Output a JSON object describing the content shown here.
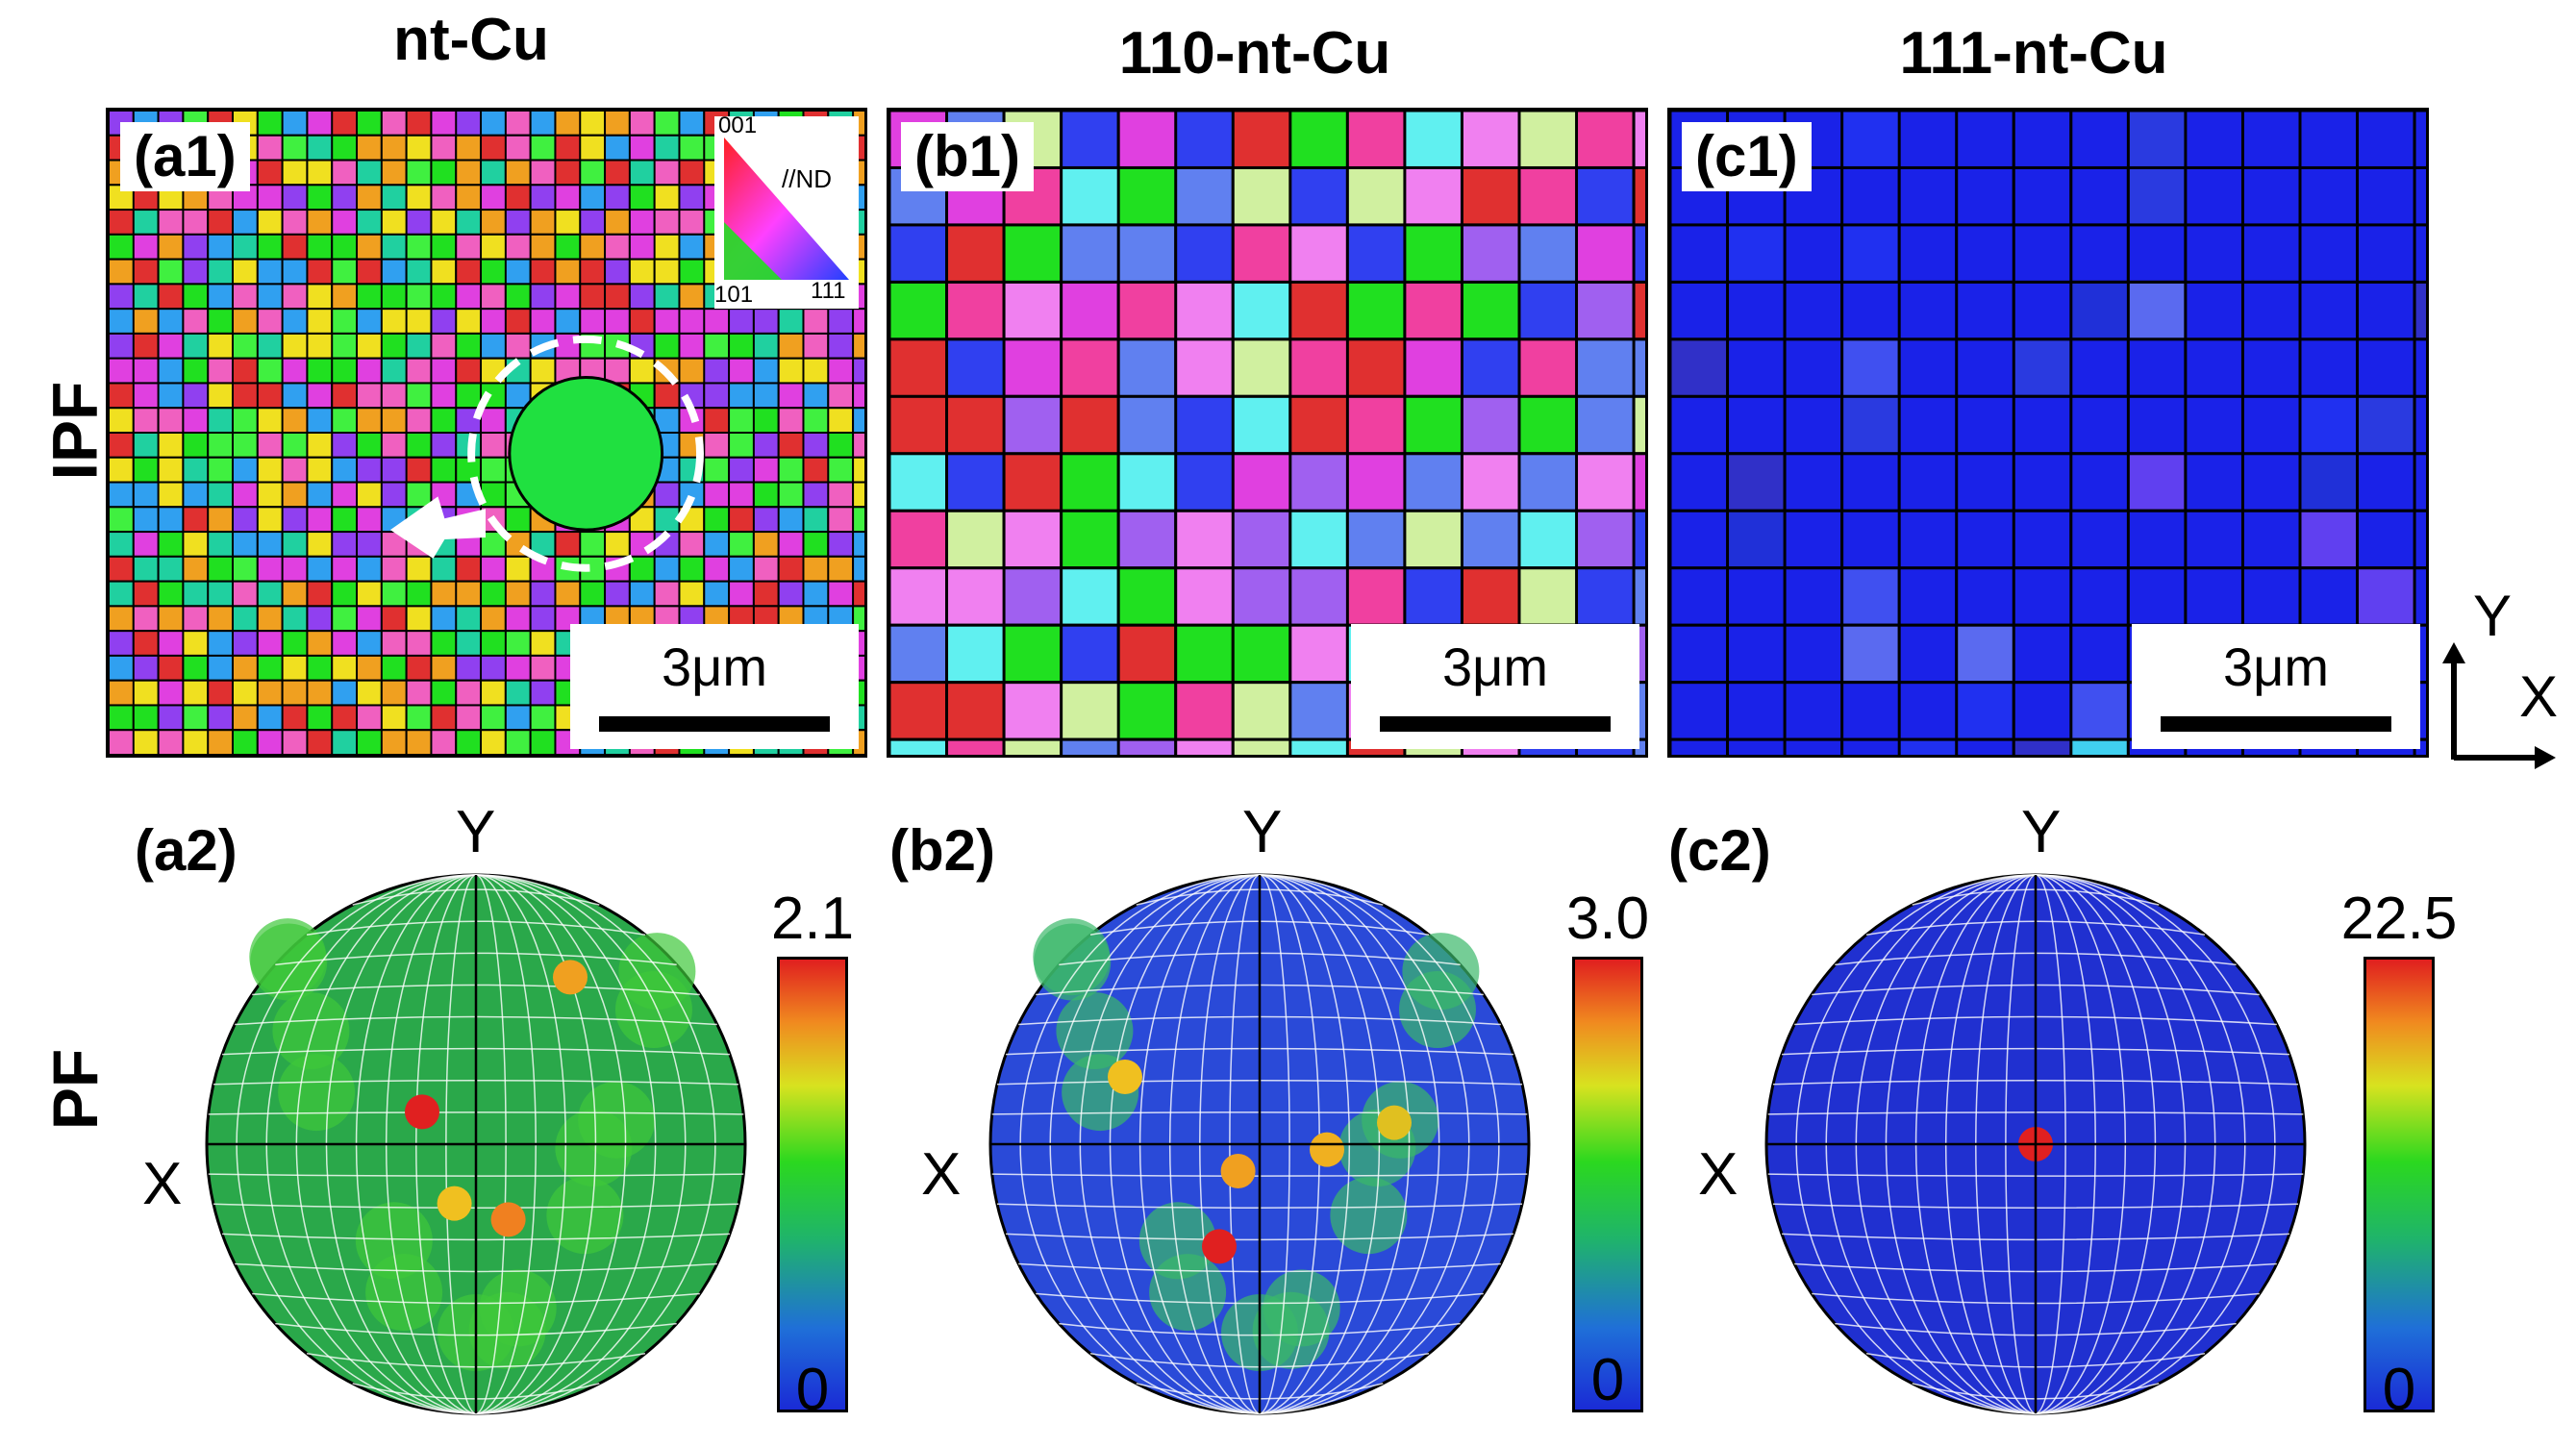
{
  "columns": [
    {
      "title": "nt-Cu"
    },
    {
      "title": "110-nt-Cu"
    },
    {
      "title": "111-nt-Cu"
    }
  ],
  "rows": {
    "ipf": "IPF",
    "pf": "PF"
  },
  "ipf_panels": [
    {
      "label": "(a1)",
      "scale": "3μm",
      "colors": [
        "#20e020",
        "#e040e0",
        "#30a0f0",
        "#f0a020",
        "#e03030",
        "#9040f0",
        "#20d0a0",
        "#f0e020",
        "#40f040",
        "#f060c0"
      ]
    },
    {
      "label": "(b1)",
      "scale": "3μm",
      "colors": [
        "#e040e0",
        "#20e020",
        "#a060f0",
        "#f040a0",
        "#6080f0",
        "#e03030",
        "#60f0f0",
        "#d0f0a0",
        "#3040f0",
        "#f080f0"
      ]
    },
    {
      "label": "(c1)",
      "scale": "3μm",
      "colors": [
        "#1a22e8",
        "#2030f0",
        "#2a3ae0",
        "#4050f0",
        "#3030c8",
        "#5a6af0",
        "#40d0f0",
        "#6040f0",
        "#1a22e8",
        "#2030d8"
      ]
    }
  ],
  "ipf_legend": {
    "top": "001",
    "left": "101",
    "right": "111",
    "axis": "//ND"
  },
  "axes": {
    "y": "Y",
    "x": "X"
  },
  "pf_panels": [
    {
      "label": "(a2)",
      "max": "2.1",
      "min": "0",
      "x": "X",
      "y": "Y"
    },
    {
      "label": "(b2)",
      "max": "3.0",
      "min": "0",
      "x": "X",
      "y": "Y"
    },
    {
      "label": "(c2)",
      "max": "22.5",
      "min": "0",
      "x": "X",
      "y": "Y"
    }
  ]
}
